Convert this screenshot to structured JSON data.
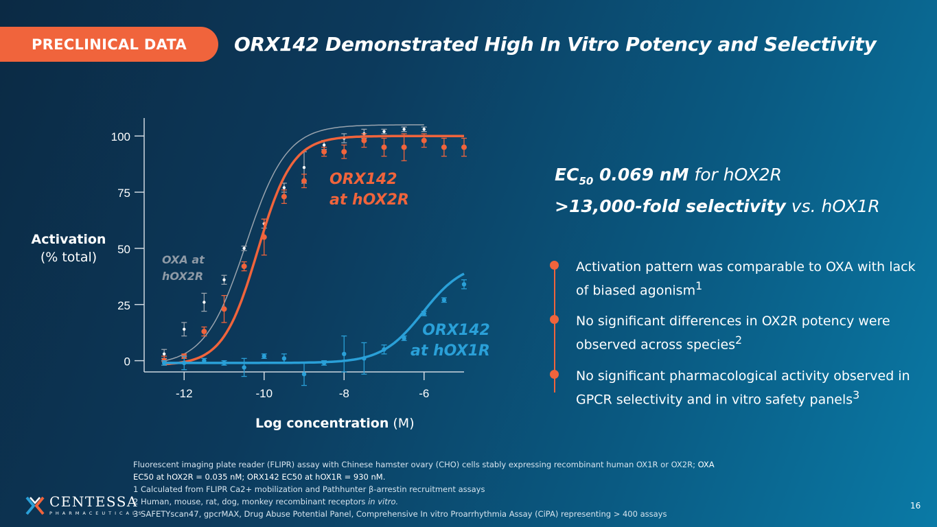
{
  "header": {
    "section_label": "PRECLINICAL DATA",
    "title": "ORX142 Demonstrated High In Vitro Potency and Selectivity"
  },
  "chart_data": {
    "type": "line",
    "xlabel_bold": "Log concentration",
    "xlabel_unit": "(M)",
    "ylabel_bold": "Activation",
    "ylabel_unit": "(% total)",
    "xlim": [
      -13,
      -5
    ],
    "ylim": [
      -5,
      108
    ],
    "xticks": [
      -12,
      -10,
      -8,
      -6
    ],
    "yticks": [
      0,
      25,
      50,
      75,
      100
    ],
    "series": [
      {
        "name": "OXA at hOX2R",
        "label_line1": "OXA at",
        "label_line2": "hOX2R",
        "color": "#9aa4ae",
        "ec50_log": -10.46,
        "top": 105,
        "bottom": -2,
        "hill": 0.85,
        "points": [
          {
            "x": -12.5,
            "y": 3,
            "err": 2
          },
          {
            "x": -12.0,
            "y": 14,
            "err": 3
          },
          {
            "x": -11.5,
            "y": 26,
            "err": 4
          },
          {
            "x": -11.0,
            "y": 36,
            "err": 2
          },
          {
            "x": -10.5,
            "y": 50,
            "err": 1
          },
          {
            "x": -10.0,
            "y": 61,
            "err": 2
          },
          {
            "x": -9.5,
            "y": 77,
            "err": 2
          },
          {
            "x": -9.0,
            "y": 86,
            "err": 7
          },
          {
            "x": -8.5,
            "y": 96,
            "err": 2
          },
          {
            "x": -8.0,
            "y": 99,
            "err": 2
          },
          {
            "x": -7.5,
            "y": 101,
            "err": 2
          },
          {
            "x": -7.0,
            "y": 102,
            "err": 1
          },
          {
            "x": -6.5,
            "y": 103,
            "err": 1
          },
          {
            "x": -6.0,
            "y": 103,
            "err": 1
          }
        ]
      },
      {
        "name": "ORX142 at hOX2R",
        "label_line1": "ORX142",
        "label_line2": "at hOX2R",
        "color": "#f0643c",
        "ec50_log": -10.16,
        "top": 100,
        "bottom": -2,
        "hill": 1.0,
        "points": [
          {
            "x": -12.5,
            "y": 0,
            "err": 2
          },
          {
            "x": -12.0,
            "y": 2,
            "err": 1
          },
          {
            "x": -11.5,
            "y": 13,
            "err": 2
          },
          {
            "x": -11.0,
            "y": 23,
            "err": 6
          },
          {
            "x": -10.5,
            "y": 42,
            "err": 2
          },
          {
            "x": -10.0,
            "y": 55,
            "err": 8
          },
          {
            "x": -9.5,
            "y": 73,
            "err": 3
          },
          {
            "x": -9.0,
            "y": 80,
            "err": 3
          },
          {
            "x": -8.5,
            "y": 93,
            "err": 2
          },
          {
            "x": -8.0,
            "y": 93,
            "err": 3
          },
          {
            "x": -7.5,
            "y": 98,
            "err": 3
          },
          {
            "x": -7.0,
            "y": 95,
            "err": 4
          },
          {
            "x": -6.5,
            "y": 95,
            "err": 6
          },
          {
            "x": -6.0,
            "y": 98,
            "err": 3
          },
          {
            "x": -5.5,
            "y": 95,
            "err": 4
          },
          {
            "x": -5.0,
            "y": 95,
            "err": 4
          }
        ]
      },
      {
        "name": "ORX142 at hOX1R",
        "label_line1": "ORX142",
        "label_line2": "at hOX1R",
        "color": "#2aa0d8",
        "ec50_log": -6.03,
        "top": 44,
        "bottom": -1,
        "hill": 0.85,
        "points": [
          {
            "x": -12.5,
            "y": -1,
            "err": 1
          },
          {
            "x": -12.0,
            "y": -1,
            "err": 3
          },
          {
            "x": -11.5,
            "y": 0,
            "err": 1
          },
          {
            "x": -11.0,
            "y": -1,
            "err": 1
          },
          {
            "x": -10.5,
            "y": -3,
            "err": 4
          },
          {
            "x": -10.0,
            "y": 2,
            "err": 1
          },
          {
            "x": -9.5,
            "y": 1,
            "err": 2
          },
          {
            "x": -9.0,
            "y": -6,
            "err": 5
          },
          {
            "x": -8.5,
            "y": -1,
            "err": 1
          },
          {
            "x": -8.0,
            "y": 3,
            "err": 8
          },
          {
            "x": -7.5,
            "y": 1,
            "err": 7
          },
          {
            "x": -7.0,
            "y": 5,
            "err": 2
          },
          {
            "x": -6.5,
            "y": 10,
            "err": 1
          },
          {
            "x": -6.0,
            "y": 21,
            "err": 1
          },
          {
            "x": -5.5,
            "y": 27,
            "err": 1
          },
          {
            "x": -5.0,
            "y": 34,
            "err": 2
          }
        ]
      }
    ]
  },
  "kpis": {
    "line1_bold": "EC",
    "line1_sub": "50",
    "line1_bold2": " 0.069 nM",
    "line1_rest": " for hOX2R",
    "line2_bold": ">13,000-fold selectivity",
    "line2_rest": " vs. hOX1R"
  },
  "bullets": [
    {
      "text": "Activation pattern was comparable to OXA with lack of biased agonism",
      "sup": "1"
    },
    {
      "text": "No significant differences in OX2R potency were observed across species",
      "sup": "2"
    },
    {
      "text": "No significant pharmacological activity observed in GPCR selectivity and in vitro safety panels",
      "sup": "3"
    }
  ],
  "footnotes": {
    "line1": "Fluorescent imaging plate reader (FLIPR) assay with Chinese hamster ovary (CHO) cells stably expressing recombinant human OX1R or OX2R; ",
    "line1_bright": "OXA",
    "line2_bright": "EC50 at hOX2R = 0.035 nM; ORX142 EC50 at hOX1R = 930 nM.",
    "note1": "1  Calculated from FLIPR Ca2+ mobilization and Pathhunter β-arrestin recruitment assays",
    "note2": "2  Human, mouse, rat, dog, monkey recombinant receptors ",
    "note2_italic": "in vitro.",
    "note3": "3  SAFETYscan47, gpcrMAX, Drug Abuse Potential Panel, Comprehensive In vitro Proarrhythmia Assay (CiPA) representing > 400 assays"
  },
  "logo": {
    "name": "CENTESSA",
    "sub": "PHARMACEUTICALS"
  },
  "page_number": "16"
}
